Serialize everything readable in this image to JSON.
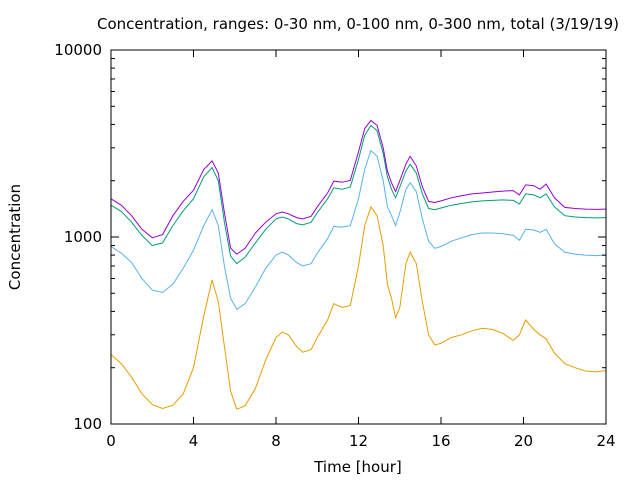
{
  "chart_data": {
    "type": "line",
    "title": "Concentration, ranges: 0-30 nm, 0-100 nm, 0-300 nm, total (3/19/19)",
    "xlabel": "Time [hour]",
    "ylabel": "Concentration",
    "x_range": [
      0,
      24
    ],
    "y_range": [
      100,
      10000
    ],
    "y_scale": "log",
    "grid": false,
    "legend": "none",
    "x_ticks": [
      0,
      4,
      8,
      12,
      16,
      20,
      24
    ],
    "x_tick_labels": [
      "0",
      "4",
      "8",
      "12",
      "16",
      "20",
      "24"
    ],
    "y_ticks": [
      100,
      1000,
      10000
    ],
    "y_tick_labels": [
      "100",
      "1000",
      "10000"
    ],
    "series": [
      {
        "color": "#e69f00",
        "points": [
          [
            0,
            235
          ],
          [
            0.5,
            210
          ],
          [
            1,
            178
          ],
          [
            1.5,
            145
          ],
          [
            2,
            127
          ],
          [
            2.5,
            121
          ],
          [
            3,
            126
          ],
          [
            3.5,
            145
          ],
          [
            4,
            200
          ],
          [
            4.5,
            380
          ],
          [
            4.9,
            590
          ],
          [
            5.2,
            450
          ],
          [
            5.5,
            260
          ],
          [
            5.8,
            150
          ],
          [
            6.1,
            120
          ],
          [
            6.5,
            125
          ],
          [
            7,
            155
          ],
          [
            7.5,
            220
          ],
          [
            8,
            290
          ],
          [
            8.3,
            310
          ],
          [
            8.6,
            300
          ],
          [
            9,
            260
          ],
          [
            9.3,
            242
          ],
          [
            9.7,
            250
          ],
          [
            10,
            290
          ],
          [
            10.5,
            360
          ],
          [
            10.8,
            440
          ],
          [
            11.2,
            420
          ],
          [
            11.6,
            430
          ],
          [
            12,
            700
          ],
          [
            12.3,
            1150
          ],
          [
            12.6,
            1450
          ],
          [
            12.9,
            1300
          ],
          [
            13.2,
            900
          ],
          [
            13.4,
            560
          ],
          [
            13.6,
            470
          ],
          [
            13.8,
            370
          ],
          [
            14,
            420
          ],
          [
            14.3,
            720
          ],
          [
            14.5,
            830
          ],
          [
            14.8,
            720
          ],
          [
            15.1,
            450
          ],
          [
            15.4,
            300
          ],
          [
            15.7,
            265
          ],
          [
            16,
            270
          ],
          [
            16.5,
            290
          ],
          [
            17,
            300
          ],
          [
            17.5,
            315
          ],
          [
            18,
            325
          ],
          [
            18.5,
            320
          ],
          [
            19,
            305
          ],
          [
            19.5,
            280
          ],
          [
            19.8,
            300
          ],
          [
            20.1,
            360
          ],
          [
            20.5,
            320
          ],
          [
            20.8,
            300
          ],
          [
            21.1,
            285
          ],
          [
            21.5,
            240
          ],
          [
            22,
            210
          ],
          [
            22.5,
            200
          ],
          [
            23,
            192
          ],
          [
            23.5,
            190
          ],
          [
            24,
            193
          ]
        ]
      },
      {
        "color": "#56b4e9",
        "points": [
          [
            0,
            890
          ],
          [
            0.5,
            820
          ],
          [
            1,
            730
          ],
          [
            1.5,
            600
          ],
          [
            2,
            520
          ],
          [
            2.5,
            505
          ],
          [
            3,
            560
          ],
          [
            3.5,
            680
          ],
          [
            4,
            850
          ],
          [
            4.5,
            1150
          ],
          [
            4.9,
            1400
          ],
          [
            5.2,
            1150
          ],
          [
            5.5,
            700
          ],
          [
            5.8,
            470
          ],
          [
            6.1,
            410
          ],
          [
            6.5,
            440
          ],
          [
            7,
            540
          ],
          [
            7.5,
            680
          ],
          [
            8,
            800
          ],
          [
            8.3,
            830
          ],
          [
            8.6,
            800
          ],
          [
            9,
            730
          ],
          [
            9.3,
            700
          ],
          [
            9.7,
            720
          ],
          [
            10,
            820
          ],
          [
            10.5,
            980
          ],
          [
            10.8,
            1140
          ],
          [
            11.2,
            1130
          ],
          [
            11.6,
            1150
          ],
          [
            12,
            1600
          ],
          [
            12.3,
            2300
          ],
          [
            12.6,
            2900
          ],
          [
            12.9,
            2700
          ],
          [
            13.2,
            2000
          ],
          [
            13.4,
            1450
          ],
          [
            13.6,
            1300
          ],
          [
            13.8,
            1150
          ],
          [
            14,
            1350
          ],
          [
            14.3,
            1800
          ],
          [
            14.5,
            1950
          ],
          [
            14.8,
            1750
          ],
          [
            15.1,
            1250
          ],
          [
            15.4,
            950
          ],
          [
            15.7,
            870
          ],
          [
            16,
            890
          ],
          [
            16.5,
            950
          ],
          [
            17,
            990
          ],
          [
            17.5,
            1030
          ],
          [
            18,
            1050
          ],
          [
            18.5,
            1050
          ],
          [
            19,
            1040
          ],
          [
            19.5,
            1020
          ],
          [
            19.8,
            960
          ],
          [
            20.1,
            1100
          ],
          [
            20.5,
            1090
          ],
          [
            20.8,
            1060
          ],
          [
            21.1,
            1100
          ],
          [
            21.5,
            920
          ],
          [
            22,
            830
          ],
          [
            22.5,
            810
          ],
          [
            23,
            800
          ],
          [
            23.5,
            795
          ],
          [
            24,
            800
          ]
        ]
      },
      {
        "color": "#009e73",
        "points": [
          [
            0,
            1480
          ],
          [
            0.5,
            1370
          ],
          [
            1,
            1200
          ],
          [
            1.5,
            1020
          ],
          [
            2,
            900
          ],
          [
            2.5,
            930
          ],
          [
            3,
            1150
          ],
          [
            3.5,
            1380
          ],
          [
            4,
            1600
          ],
          [
            4.5,
            2100
          ],
          [
            4.9,
            2350
          ],
          [
            5.2,
            2000
          ],
          [
            5.5,
            1200
          ],
          [
            5.8,
            790
          ],
          [
            6.1,
            720
          ],
          [
            6.5,
            780
          ],
          [
            7,
            930
          ],
          [
            7.5,
            1100
          ],
          [
            8,
            1250
          ],
          [
            8.3,
            1280
          ],
          [
            8.6,
            1250
          ],
          [
            9,
            1180
          ],
          [
            9.3,
            1160
          ],
          [
            9.7,
            1200
          ],
          [
            10,
            1350
          ],
          [
            10.5,
            1600
          ],
          [
            10.8,
            1830
          ],
          [
            11.2,
            1800
          ],
          [
            11.6,
            1850
          ],
          [
            12,
            2600
          ],
          [
            12.3,
            3500
          ],
          [
            12.6,
            3950
          ],
          [
            12.9,
            3700
          ],
          [
            13.2,
            2800
          ],
          [
            13.4,
            2100
          ],
          [
            13.6,
            1800
          ],
          [
            13.8,
            1620
          ],
          [
            14,
            1850
          ],
          [
            14.3,
            2250
          ],
          [
            14.5,
            2450
          ],
          [
            14.8,
            2200
          ],
          [
            15.1,
            1700
          ],
          [
            15.4,
            1420
          ],
          [
            15.7,
            1400
          ],
          [
            16,
            1430
          ],
          [
            16.5,
            1480
          ],
          [
            17,
            1510
          ],
          [
            17.5,
            1540
          ],
          [
            18,
            1560
          ],
          [
            18.5,
            1570
          ],
          [
            19,
            1580
          ],
          [
            19.5,
            1570
          ],
          [
            19.8,
            1500
          ],
          [
            20.1,
            1700
          ],
          [
            20.5,
            1680
          ],
          [
            20.8,
            1620
          ],
          [
            21.1,
            1700
          ],
          [
            21.5,
            1450
          ],
          [
            22,
            1300
          ],
          [
            22.5,
            1280
          ],
          [
            23,
            1270
          ],
          [
            23.5,
            1265
          ],
          [
            24,
            1270
          ]
        ]
      },
      {
        "color": "#9400d3",
        "points": [
          [
            0,
            1600
          ],
          [
            0.5,
            1480
          ],
          [
            1,
            1300
          ],
          [
            1.5,
            1100
          ],
          [
            2,
            990
          ],
          [
            2.5,
            1030
          ],
          [
            3,
            1300
          ],
          [
            3.5,
            1550
          ],
          [
            4,
            1780
          ],
          [
            4.5,
            2300
          ],
          [
            4.9,
            2550
          ],
          [
            5.2,
            2200
          ],
          [
            5.5,
            1350
          ],
          [
            5.8,
            870
          ],
          [
            6.1,
            810
          ],
          [
            6.5,
            870
          ],
          [
            7,
            1050
          ],
          [
            7.5,
            1200
          ],
          [
            8,
            1330
          ],
          [
            8.3,
            1360
          ],
          [
            8.6,
            1330
          ],
          [
            9,
            1270
          ],
          [
            9.3,
            1250
          ],
          [
            9.7,
            1290
          ],
          [
            10,
            1450
          ],
          [
            10.5,
            1720
          ],
          [
            10.8,
            1990
          ],
          [
            11.2,
            1960
          ],
          [
            11.6,
            2010
          ],
          [
            12,
            2850
          ],
          [
            12.3,
            3800
          ],
          [
            12.6,
            4200
          ],
          [
            12.9,
            3950
          ],
          [
            13.2,
            3000
          ],
          [
            13.4,
            2250
          ],
          [
            13.6,
            1950
          ],
          [
            13.8,
            1750
          ],
          [
            14,
            2000
          ],
          [
            14.3,
            2450
          ],
          [
            14.5,
            2700
          ],
          [
            14.8,
            2400
          ],
          [
            15.1,
            1850
          ],
          [
            15.4,
            1550
          ],
          [
            15.7,
            1530
          ],
          [
            16,
            1560
          ],
          [
            16.5,
            1620
          ],
          [
            17,
            1660
          ],
          [
            17.5,
            1700
          ],
          [
            18,
            1720
          ],
          [
            18.5,
            1740
          ],
          [
            19,
            1760
          ],
          [
            19.5,
            1770
          ],
          [
            19.8,
            1680
          ],
          [
            20.1,
            1900
          ],
          [
            20.5,
            1880
          ],
          [
            20.8,
            1800
          ],
          [
            21.1,
            1920
          ],
          [
            21.5,
            1620
          ],
          [
            22,
            1440
          ],
          [
            22.5,
            1420
          ],
          [
            23,
            1410
          ],
          [
            23.5,
            1405
          ],
          [
            24,
            1410
          ]
        ]
      }
    ]
  }
}
